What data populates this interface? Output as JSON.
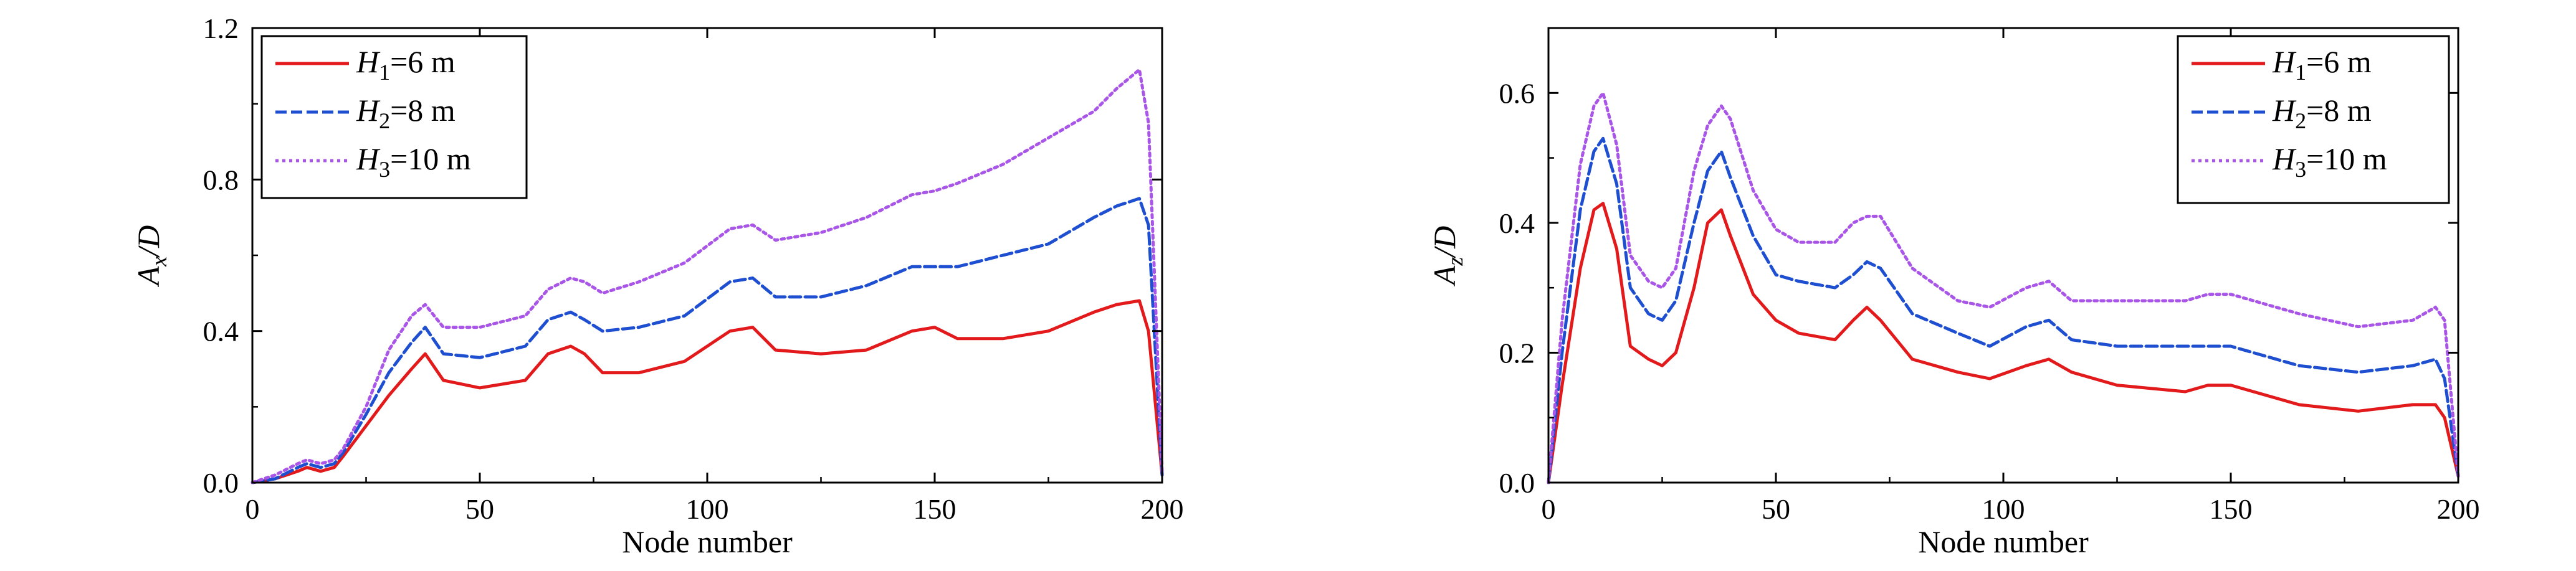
{
  "chart_data": [
    {
      "type": "line",
      "xlabel": "Node number",
      "ylabel": "A_x/D",
      "ylabel_main": "A",
      "ylabel_sub": "x",
      "ylabel_tail": "/D",
      "xlim": [
        0,
        200
      ],
      "ylim": [
        0,
        1.2
      ],
      "xticks": [
        "0",
        "50",
        "100",
        "150",
        "200"
      ],
      "yticks": [
        "0.0",
        "0.4",
        "0.8",
        "1.2"
      ],
      "grid": false,
      "legend_position": "top-left",
      "series": [
        {
          "name": "H1=6 m",
          "label": {
            "main": "H",
            "sub": "1",
            "tail": "=6 m"
          },
          "color": "#e31a1c",
          "dash": "solid",
          "x": [
            0,
            5,
            10,
            12,
            15,
            18,
            20,
            25,
            30,
            35,
            38,
            42,
            50,
            60,
            65,
            70,
            73,
            77,
            85,
            95,
            105,
            110,
            115,
            125,
            135,
            145,
            150,
            155,
            165,
            175,
            185,
            190,
            195,
            197,
            200
          ],
          "y": [
            0.0,
            0.01,
            0.03,
            0.04,
            0.03,
            0.04,
            0.07,
            0.15,
            0.23,
            0.3,
            0.34,
            0.27,
            0.25,
            0.27,
            0.34,
            0.36,
            0.34,
            0.29,
            0.29,
            0.32,
            0.4,
            0.41,
            0.35,
            0.34,
            0.35,
            0.4,
            0.41,
            0.38,
            0.38,
            0.4,
            0.45,
            0.47,
            0.48,
            0.4,
            0.02
          ]
        },
        {
          "name": "H2=8 m",
          "label": {
            "main": "H",
            "sub": "2",
            "tail": "=8 m"
          },
          "color": "#1f4fd1",
          "dash": "dashed",
          "x": [
            0,
            5,
            10,
            12,
            15,
            18,
            20,
            25,
            30,
            35,
            38,
            42,
            50,
            60,
            65,
            70,
            73,
            77,
            85,
            95,
            105,
            110,
            115,
            125,
            135,
            145,
            150,
            155,
            165,
            175,
            185,
            190,
            195,
            197,
            200
          ],
          "y": [
            0.0,
            0.01,
            0.04,
            0.05,
            0.04,
            0.05,
            0.08,
            0.18,
            0.29,
            0.37,
            0.41,
            0.34,
            0.33,
            0.36,
            0.43,
            0.45,
            0.43,
            0.4,
            0.41,
            0.44,
            0.53,
            0.54,
            0.49,
            0.49,
            0.52,
            0.57,
            0.57,
            0.57,
            0.6,
            0.63,
            0.7,
            0.73,
            0.75,
            0.68,
            0.02
          ]
        },
        {
          "name": "H3=10 m",
          "label": {
            "main": "H",
            "sub": "3",
            "tail": "=10 m"
          },
          "color": "#a855e8",
          "dash": "dotted",
          "x": [
            0,
            5,
            10,
            12,
            15,
            18,
            20,
            25,
            30,
            35,
            38,
            42,
            50,
            60,
            65,
            70,
            73,
            77,
            85,
            95,
            105,
            110,
            115,
            125,
            135,
            145,
            150,
            155,
            165,
            175,
            185,
            190,
            195,
            197,
            200
          ],
          "y": [
            0.0,
            0.02,
            0.05,
            0.06,
            0.05,
            0.06,
            0.09,
            0.2,
            0.35,
            0.44,
            0.47,
            0.41,
            0.41,
            0.44,
            0.51,
            0.54,
            0.53,
            0.5,
            0.53,
            0.58,
            0.67,
            0.68,
            0.64,
            0.66,
            0.7,
            0.76,
            0.77,
            0.79,
            0.84,
            0.91,
            0.98,
            1.04,
            1.09,
            0.95,
            0.03
          ]
        }
      ]
    },
    {
      "type": "line",
      "xlabel": "Node number",
      "ylabel": "A_z/D",
      "ylabel_main": "A",
      "ylabel_sub": "z",
      "ylabel_tail": "/D",
      "xlim": [
        0,
        200
      ],
      "ylim": [
        0,
        0.7
      ],
      "xticks": [
        "0",
        "50",
        "100",
        "150",
        "200"
      ],
      "yticks": [
        "0.0",
        "0.2",
        "0.4",
        "0.6"
      ],
      "grid": false,
      "legend_position": "top-right",
      "series": [
        {
          "name": "H1=6 m",
          "label": {
            "main": "H",
            "sub": "1",
            "tail": "=6 m"
          },
          "color": "#e31a1c",
          "dash": "solid",
          "x": [
            0,
            3,
            7,
            10,
            12,
            15,
            18,
            22,
            25,
            28,
            32,
            35,
            38,
            40,
            45,
            50,
            55,
            63,
            67,
            70,
            73,
            80,
            90,
            97,
            105,
            110,
            115,
            125,
            140,
            145,
            150,
            165,
            178,
            190,
            195,
            197,
            200
          ],
          "y": [
            0.0,
            0.15,
            0.33,
            0.42,
            0.43,
            0.36,
            0.21,
            0.19,
            0.18,
            0.2,
            0.3,
            0.4,
            0.42,
            0.38,
            0.29,
            0.25,
            0.23,
            0.22,
            0.25,
            0.27,
            0.25,
            0.19,
            0.17,
            0.16,
            0.18,
            0.19,
            0.17,
            0.15,
            0.14,
            0.15,
            0.15,
            0.12,
            0.11,
            0.12,
            0.12,
            0.1,
            0.01
          ]
        },
        {
          "name": "H2=8 m",
          "label": {
            "main": "H",
            "sub": "2",
            "tail": "=8 m"
          },
          "color": "#1f4fd1",
          "dash": "dashed",
          "x": [
            0,
            3,
            7,
            10,
            12,
            15,
            18,
            22,
            25,
            28,
            32,
            35,
            38,
            40,
            45,
            50,
            55,
            63,
            67,
            70,
            73,
            80,
            90,
            97,
            105,
            110,
            115,
            125,
            140,
            145,
            150,
            165,
            178,
            190,
            195,
            197,
            200
          ],
          "y": [
            0.0,
            0.2,
            0.42,
            0.51,
            0.53,
            0.46,
            0.3,
            0.26,
            0.25,
            0.28,
            0.4,
            0.48,
            0.51,
            0.47,
            0.38,
            0.32,
            0.31,
            0.3,
            0.32,
            0.34,
            0.33,
            0.26,
            0.23,
            0.21,
            0.24,
            0.25,
            0.22,
            0.21,
            0.21,
            0.21,
            0.21,
            0.18,
            0.17,
            0.18,
            0.19,
            0.16,
            0.01
          ]
        },
        {
          "name": "H3=10 m",
          "label": {
            "main": "H",
            "sub": "3",
            "tail": "=10 m"
          },
          "color": "#a855e8",
          "dash": "dotted",
          "x": [
            0,
            3,
            7,
            10,
            12,
            15,
            18,
            22,
            25,
            28,
            32,
            35,
            38,
            40,
            45,
            50,
            55,
            63,
            67,
            70,
            73,
            80,
            90,
            97,
            105,
            110,
            115,
            125,
            140,
            145,
            150,
            165,
            178,
            190,
            195,
            197,
            200
          ],
          "y": [
            0.0,
            0.25,
            0.49,
            0.58,
            0.6,
            0.52,
            0.35,
            0.31,
            0.3,
            0.33,
            0.48,
            0.55,
            0.58,
            0.56,
            0.45,
            0.39,
            0.37,
            0.37,
            0.4,
            0.41,
            0.41,
            0.33,
            0.28,
            0.27,
            0.3,
            0.31,
            0.28,
            0.28,
            0.28,
            0.29,
            0.29,
            0.26,
            0.24,
            0.25,
            0.27,
            0.25,
            0.01
          ]
        }
      ]
    }
  ]
}
